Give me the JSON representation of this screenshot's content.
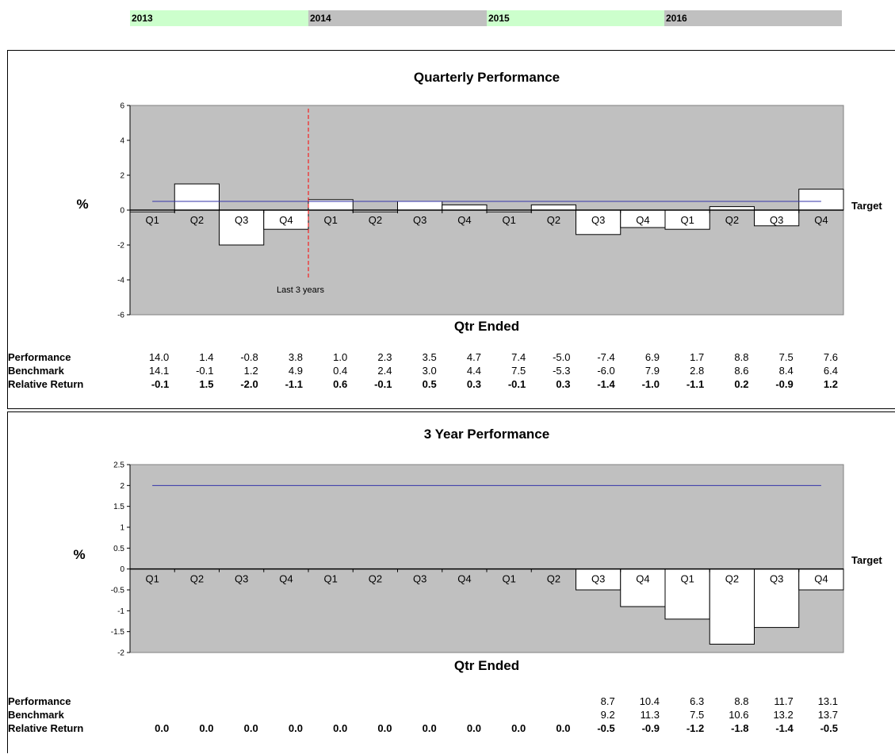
{
  "year_header": [
    {
      "label": "2013",
      "color": "#ccffcc"
    },
    {
      "label": "2014",
      "color": "#c0c0c0"
    },
    {
      "label": "2015",
      "color": "#ccffcc"
    },
    {
      "label": "2016",
      "color": "#c0c0c0"
    }
  ],
  "chart_data": [
    {
      "type": "bar",
      "title": "Quarterly Performance",
      "xlabel": "Qtr Ended",
      "ylabel": "%",
      "ylim": [
        -6,
        6
      ],
      "yticks": [
        "6",
        "4",
        "2",
        "0",
        "-2",
        "-4",
        "-6"
      ],
      "categories": [
        "Q1",
        "Q2",
        "Q3",
        "Q4",
        "Q1",
        "Q2",
        "Q3",
        "Q4",
        "Q1",
        "Q2",
        "Q3",
        "Q4",
        "Q1",
        "Q2",
        "Q3",
        "Q4"
      ],
      "series": [
        {
          "values": [
            -0.1,
            1.5,
            -2.0,
            -1.1,
            0.6,
            -0.1,
            0.5,
            0.3,
            -0.1,
            0.3,
            -1.4,
            -1.0,
            -1.1,
            0.2,
            -0.9,
            1.2
          ]
        }
      ],
      "target": {
        "label": "Target",
        "value": 0.5
      },
      "annotation": {
        "label": "Last 3 years",
        "after_index": 3
      },
      "plot_color": "#c0c0c0",
      "bar_color": "#ffffff",
      "target_color": "#3333aa",
      "marker_color": "#ff0000",
      "table": [
        {
          "label": "Performance",
          "bold": false,
          "values": [
            "14.0",
            "1.4",
            "-0.8",
            "3.8",
            "1.0",
            "2.3",
            "3.5",
            "4.7",
            "7.4",
            "-5.0",
            "-7.4",
            "6.9",
            "1.7",
            "8.8",
            "7.5",
            "7.6"
          ]
        },
        {
          "label": "Benchmark",
          "bold": false,
          "values": [
            "14.1",
            "-0.1",
            "1.2",
            "4.9",
            "0.4",
            "2.4",
            "3.0",
            "4.4",
            "7.5",
            "-5.3",
            "-6.0",
            "7.9",
            "2.8",
            "8.6",
            "8.4",
            "6.4"
          ]
        },
        {
          "label": "Relative Return",
          "bold": true,
          "values": [
            "-0.1",
            "1.5",
            "-2.0",
            "-1.1",
            "0.6",
            "-0.1",
            "0.5",
            "0.3",
            "-0.1",
            "0.3",
            "-1.4",
            "-1.0",
            "-1.1",
            "0.2",
            "-0.9",
            "1.2"
          ]
        }
      ]
    },
    {
      "type": "bar",
      "title": "3 Year Performance",
      "xlabel": "Qtr Ended",
      "ylabel": "%",
      "ylim": [
        -2,
        2.5
      ],
      "yticks": [
        "2.5",
        "2",
        "1.5",
        "1",
        "0.5",
        "0",
        "-0.5",
        "-1",
        "-1.5",
        "-2"
      ],
      "categories": [
        "Q1",
        "Q2",
        "Q3",
        "Q4",
        "Q1",
        "Q2",
        "Q3",
        "Q4",
        "Q1",
        "Q2",
        "Q3",
        "Q4",
        "Q1",
        "Q2",
        "Q3",
        "Q4"
      ],
      "series": [
        {
          "values": [
            0,
            0,
            0,
            0,
            0,
            0,
            0,
            0,
            0,
            0,
            -0.5,
            -0.9,
            -1.2,
            -1.8,
            -1.4,
            -0.5
          ]
        }
      ],
      "target": {
        "label": "Target",
        "value": 2
      },
      "plot_color": "#c0c0c0",
      "bar_color": "#ffffff",
      "target_color": "#3333aa",
      "table": [
        {
          "label": "Performance",
          "bold": false,
          "values": [
            "",
            "",
            "",
            "",
            "",
            "",
            "",
            "",
            "",
            "",
            "8.7",
            "10.4",
            "6.3",
            "8.8",
            "11.7",
            "13.1"
          ]
        },
        {
          "label": "Benchmark",
          "bold": false,
          "values": [
            "",
            "",
            "",
            "",
            "",
            "",
            "",
            "",
            "",
            "",
            "9.2",
            "11.3",
            "7.5",
            "10.6",
            "13.2",
            "13.7"
          ]
        },
        {
          "label": "Relative Return",
          "bold": true,
          "values": [
            "0.0",
            "0.0",
            "0.0",
            "0.0",
            "0.0",
            "0.0",
            "0.0",
            "0.0",
            "0.0",
            "0.0",
            "-0.5",
            "-0.9",
            "-1.2",
            "-1.8",
            "-1.4",
            "-0.5"
          ]
        }
      ]
    }
  ]
}
